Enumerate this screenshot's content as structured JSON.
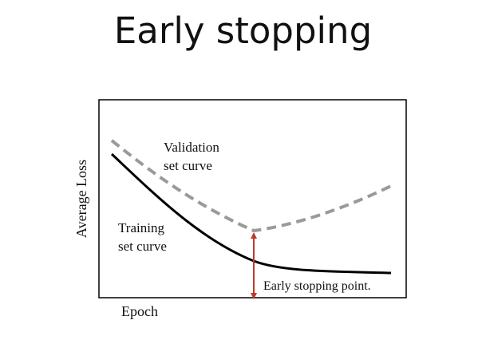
{
  "slide": {
    "title": "Early stopping"
  },
  "diagram": {
    "axis_y_label": "Average Loss",
    "axis_x_label": "Epoch",
    "validation_label_line1": "Validation",
    "validation_label_line2": "set curve",
    "training_label_line1": "Training",
    "training_label_line2": "set curve",
    "stopping_label": "Early stopping point.",
    "colors": {
      "training_curve": "#000000",
      "validation_curve": "#9a9a9a",
      "stopping_marker": "#c0392b",
      "frame": "#000000"
    }
  }
}
